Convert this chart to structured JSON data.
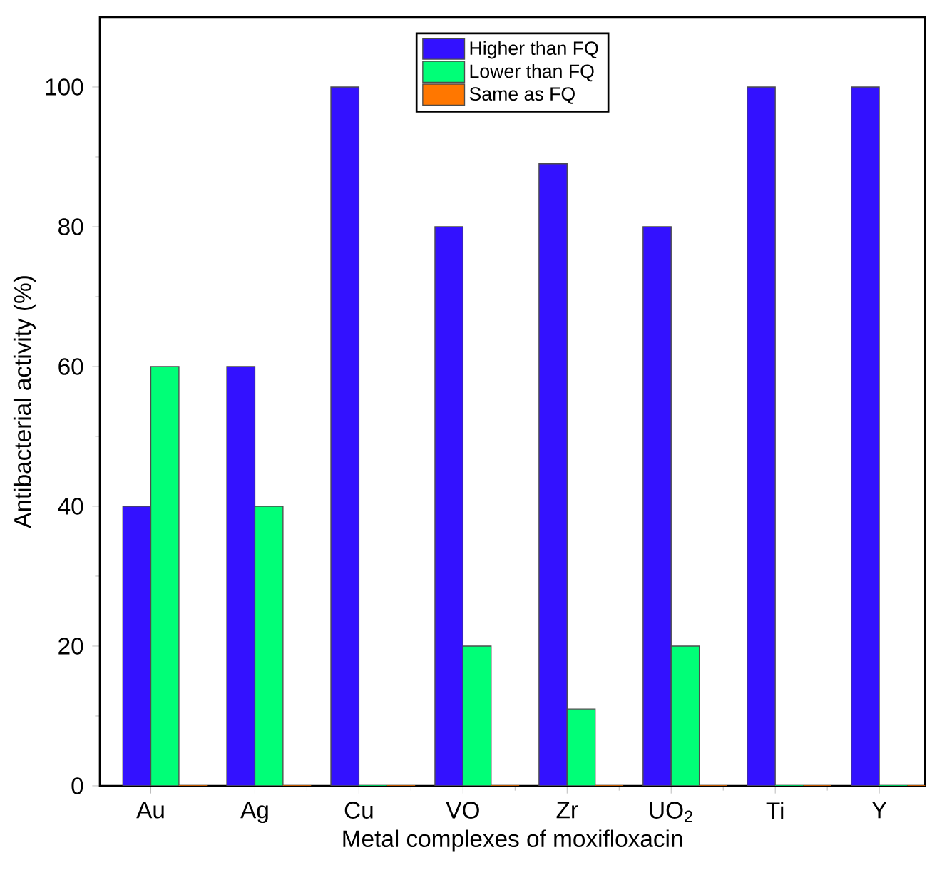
{
  "chart_data": {
    "type": "bar",
    "xlabel": "Metal complexes of moxifloxacin",
    "ylabel": "Antibacterial activity (%)",
    "categories": [
      "Au",
      "Ag",
      "Cu",
      "VO",
      "Zr",
      "UO$_{2}$",
      "Ti",
      "Y"
    ],
    "series": [
      {
        "name": "Higher than FQ",
        "color": "#3311ff",
        "values": [
          40,
          60,
          100,
          80,
          89,
          80,
          100,
          100
        ]
      },
      {
        "name": "Lower than FQ",
        "color": "#00ff77",
        "values": [
          60,
          40,
          0,
          20,
          11,
          20,
          0,
          0
        ]
      },
      {
        "name": "Same as FQ",
        "color": "#ff7700",
        "values": [
          0,
          0,
          0,
          0,
          0,
          0,
          0,
          0
        ]
      }
    ],
    "ylim": [
      0,
      110
    ],
    "yticks": [
      0,
      20,
      40,
      60,
      80,
      100
    ],
    "grid": false,
    "legend": "top"
  }
}
